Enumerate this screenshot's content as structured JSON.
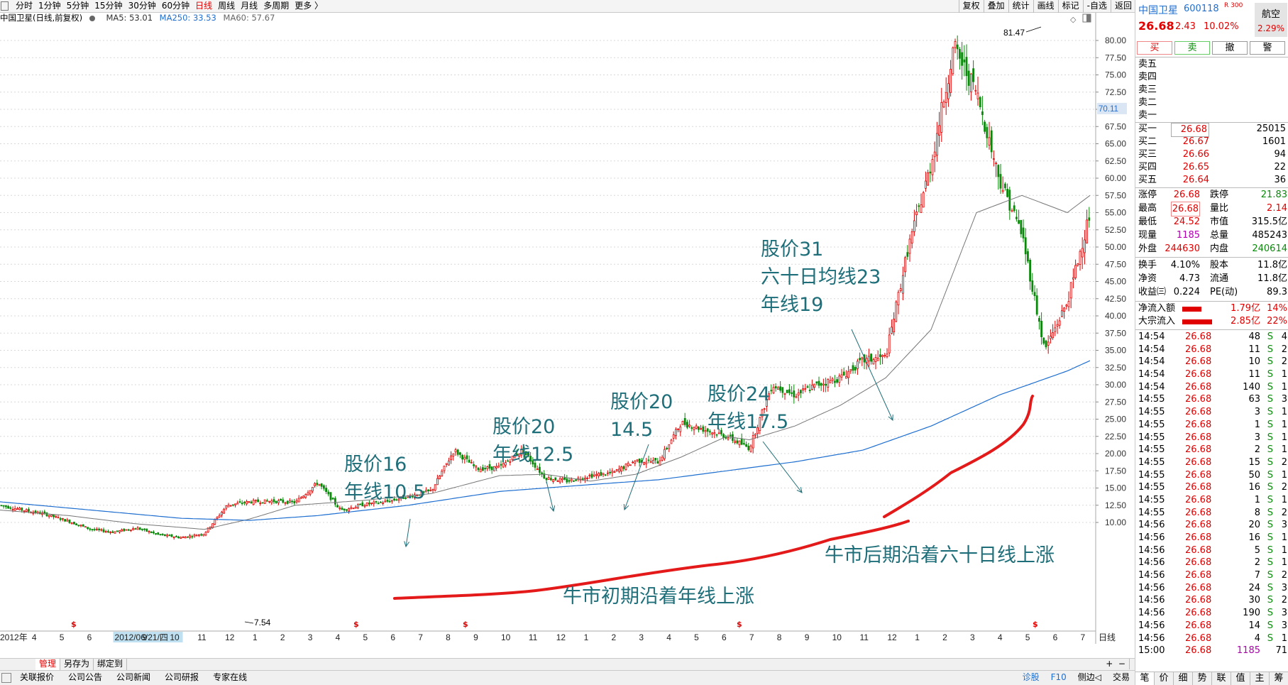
{
  "toolbar": {
    "periods": [
      "分时",
      "1分钟",
      "5分钟",
      "15分钟",
      "30分钟",
      "60分钟",
      "日线",
      "周线",
      "月线",
      "多周期",
      "更多 〉"
    ],
    "active_period": "日线",
    "right_tools": [
      "复权",
      "叠加",
      "统计",
      "画线",
      "标记",
      "-自选",
      "返回"
    ]
  },
  "legend": {
    "title": "中国卫星(日线,前复权)",
    "ma5": "MA5: 53.01",
    "ma250": "MA250: 33.53",
    "ma60": "MA60: 57.67"
  },
  "chart_data": {
    "type": "candlestick",
    "stock": "中国卫星",
    "x_labels": [
      "2012年",
      "4",
      "5",
      "6",
      "2012/06/21/四",
      "9",
      "10",
      "11",
      "12",
      "1",
      "2",
      "3",
      "4",
      "5",
      "6",
      "7",
      "8",
      "9",
      "10",
      "11",
      "12",
      "1",
      "2",
      "3",
      "4",
      "5",
      "6",
      "7",
      "8",
      "9",
      "10",
      "11",
      "12",
      "1",
      "2",
      "3",
      "4",
      "5",
      "6",
      "7"
    ],
    "y_ticks": [
      "80.00",
      "77.50",
      "75.00",
      "72.50",
      "70.00",
      "67.50",
      "65.00",
      "62.50",
      "60.00",
      "57.50",
      "55.00",
      "52.50",
      "50.00",
      "47.50",
      "45.00",
      "42.50",
      "40.00",
      "37.50",
      "35.00",
      "32.50",
      "30.00",
      "27.50",
      "25.00",
      "22.50",
      "20.00",
      "17.50",
      "15.00",
      "12.50",
      "10.00"
    ],
    "ylim": [
      7.5,
      82
    ],
    "high_label": "81.47",
    "low_label": "7.54",
    "current_label": "70.11",
    "period_label": "日线",
    "price_path": [
      [
        0,
        12.5
      ],
      [
        1,
        11.8
      ],
      [
        2,
        11.2
      ],
      [
        3,
        10.2
      ],
      [
        4,
        9.0
      ],
      [
        5,
        8.6
      ],
      [
        6,
        9.2
      ],
      [
        7,
        8.2
      ],
      [
        8,
        7.8
      ],
      [
        9,
        8.4
      ],
      [
        10,
        12.5
      ],
      [
        11,
        13.0
      ],
      [
        12,
        13.1
      ],
      [
        13,
        12.9
      ],
      [
        14,
        15.8
      ],
      [
        15,
        11.8
      ],
      [
        16,
        12.6
      ],
      [
        17,
        13.0
      ],
      [
        18,
        13.8
      ],
      [
        19,
        14.6
      ],
      [
        20,
        20.5
      ],
      [
        21,
        17.8
      ],
      [
        22,
        18.0
      ],
      [
        23,
        20.5
      ],
      [
        24,
        16.5
      ],
      [
        25,
        16.0
      ],
      [
        26,
        16.8
      ],
      [
        27,
        17.2
      ],
      [
        28,
        19.0
      ],
      [
        29,
        18.8
      ],
      [
        30,
        24.5
      ],
      [
        31,
        23.5
      ],
      [
        32,
        22.5
      ],
      [
        33,
        20.8
      ],
      [
        34,
        30.0
      ],
      [
        35,
        28.5
      ],
      [
        36,
        30.0
      ],
      [
        37,
        31.0
      ],
      [
        38,
        33.5
      ],
      [
        39,
        34.0
      ],
      [
        40,
        50.0
      ],
      [
        41,
        62.0
      ],
      [
        42,
        79.0
      ],
      [
        43,
        72.5
      ],
      [
        44,
        60.0
      ],
      [
        45,
        52.0
      ],
      [
        46,
        35.0
      ],
      [
        47,
        42.0
      ],
      [
        48,
        55.0
      ]
    ],
    "ma60_path": [
      [
        0,
        11.8
      ],
      [
        3,
        11.0
      ],
      [
        6,
        9.8
      ],
      [
        9,
        9.0
      ],
      [
        11,
        10.5
      ],
      [
        13,
        12.5
      ],
      [
        16,
        13.2
      ],
      [
        19,
        14.2
      ],
      [
        22,
        16.8
      ],
      [
        24,
        17.0
      ],
      [
        26,
        16.0
      ],
      [
        28,
        17.0
      ],
      [
        30,
        19.5
      ],
      [
        32,
        22.5
      ],
      [
        33,
        22.0
      ],
      [
        35,
        24.0
      ],
      [
        37,
        27.0
      ],
      [
        39,
        31.0
      ],
      [
        41,
        38.0
      ],
      [
        43,
        55.0
      ],
      [
        45,
        57.5
      ],
      [
        47,
        55.0
      ],
      [
        48,
        57.5
      ]
    ],
    "ma250_path": [
      [
        0,
        13.0
      ],
      [
        4,
        11.8
      ],
      [
        8,
        10.6
      ],
      [
        11,
        10.3
      ],
      [
        14,
        11.0
      ],
      [
        18,
        12.5
      ],
      [
        22,
        14.5
      ],
      [
        26,
        15.5
      ],
      [
        29,
        16.2
      ],
      [
        32,
        17.5
      ],
      [
        35,
        18.8
      ],
      [
        38,
        20.5
      ],
      [
        41,
        24.0
      ],
      [
        44,
        28.5
      ],
      [
        47,
        32.0
      ],
      [
        48,
        33.5
      ]
    ]
  },
  "annotations": {
    "a1": {
      "line1": "股价16",
      "line2": "年线10.5"
    },
    "a2": {
      "line1": "股价20",
      "line2": "年线12.5"
    },
    "a3": {
      "line1": "股价20",
      "line2": "14.5"
    },
    "a4": {
      "line1": "股价24",
      "line2": "年线17.5"
    },
    "a5": {
      "line1": "股价31",
      "line2": "六十日均线23",
      "line3": "年线19"
    },
    "phase1": "牛市初期沿着年线上涨",
    "phase2": "牛市后期沿着六十日线上涨"
  },
  "tabbar": [
    "管理",
    "另存为",
    "绑定到"
  ],
  "statusbar": {
    "left": [
      "关联报价",
      "公司公告",
      "公司新闻",
      "公司研报",
      "专家在线"
    ],
    "right": [
      "诊股",
      "F10",
      "侧边◁",
      "交易"
    ]
  },
  "panel": {
    "name": "中国卫星",
    "code": "600118",
    "flag": "R 300",
    "price": "26.68",
    "change": "2.43",
    "pct": "10.02%",
    "sector_name": "航空",
    "sector_pct": "2.29%",
    "buttons": [
      "买",
      "卖",
      "撤",
      "警"
    ],
    "asks": [
      {
        "label": "卖五",
        "price": "",
        "vol": ""
      },
      {
        "label": "卖四",
        "price": "",
        "vol": ""
      },
      {
        "label": "卖三",
        "price": "",
        "vol": ""
      },
      {
        "label": "卖二",
        "price": "",
        "vol": ""
      },
      {
        "label": "卖一",
        "price": "",
        "vol": ""
      }
    ],
    "bids": [
      {
        "label": "买一",
        "price": "26.68",
        "vol": "25015"
      },
      {
        "label": "买二",
        "price": "26.67",
        "vol": "1601"
      },
      {
        "label": "买三",
        "price": "26.66",
        "vol": "94"
      },
      {
        "label": "买四",
        "price": "26.65",
        "vol": "22"
      },
      {
        "label": "买五",
        "price": "26.64",
        "vol": "36"
      }
    ],
    "stats": [
      {
        "l1": "涨停",
        "v1": "26.68",
        "l2": "跌停",
        "v2": "21.83"
      },
      {
        "l1": "最高",
        "v1": "26.68",
        "l2": "量比",
        "v2": "2.14"
      },
      {
        "l1": "最低",
        "v1": "24.52",
        "l2": "市值",
        "v2": "315.5亿"
      },
      {
        "l1": "现量",
        "v1": "1185",
        "l2": "总量",
        "v2": "485243"
      },
      {
        "l1": "外盘",
        "v1": "244630",
        "l2": "内盘",
        "v2": "240614"
      }
    ],
    "stats2": [
      {
        "l1": "换手",
        "v1": "4.10%",
        "l2": "股本",
        "v2": "11.8亿"
      },
      {
        "l1": "净资",
        "v1": "4.73",
        "l2": "流通",
        "v2": "11.8亿"
      },
      {
        "l1": "收益㈢",
        "v1": "0.224",
        "l2": "PE(动)",
        "v2": "89.3"
      }
    ],
    "flows": [
      {
        "label": "净流入额",
        "value": "1.79亿",
        "pct": "14%",
        "bar": 0.45
      },
      {
        "label": "大宗流入",
        "value": "2.85亿",
        "pct": "22%",
        "bar": 0.7
      }
    ],
    "ticks": [
      {
        "t": "14:54",
        "p": "26.68",
        "v": "48",
        "s": "S",
        "c": "4"
      },
      {
        "t": "14:54",
        "p": "26.68",
        "v": "11",
        "s": "S",
        "c": "2"
      },
      {
        "t": "14:54",
        "p": "26.68",
        "v": "10",
        "s": "S",
        "c": "2"
      },
      {
        "t": "14:54",
        "p": "26.68",
        "v": "11",
        "s": "S",
        "c": "1"
      },
      {
        "t": "14:54",
        "p": "26.68",
        "v": "140",
        "s": "S",
        "c": "1"
      },
      {
        "t": "14:55",
        "p": "26.68",
        "v": "63",
        "s": "S",
        "c": "3"
      },
      {
        "t": "14:55",
        "p": "26.68",
        "v": "3",
        "s": "S",
        "c": "1"
      },
      {
        "t": "14:55",
        "p": "26.68",
        "v": "1",
        "s": "S",
        "c": "1"
      },
      {
        "t": "14:55",
        "p": "26.68",
        "v": "3",
        "s": "S",
        "c": "1"
      },
      {
        "t": "14:55",
        "p": "26.68",
        "v": "2",
        "s": "S",
        "c": "1"
      },
      {
        "t": "14:55",
        "p": "26.68",
        "v": "15",
        "s": "S",
        "c": "2"
      },
      {
        "t": "14:55",
        "p": "26.68",
        "v": "50",
        "s": "S",
        "c": "1"
      },
      {
        "t": "14:55",
        "p": "26.68",
        "v": "16",
        "s": "S",
        "c": "2"
      },
      {
        "t": "14:55",
        "p": "26.68",
        "v": "1",
        "s": "S",
        "c": "1"
      },
      {
        "t": "14:55",
        "p": "26.68",
        "v": "8",
        "s": "S",
        "c": "2"
      },
      {
        "t": "14:56",
        "p": "26.68",
        "v": "20",
        "s": "S",
        "c": "3"
      },
      {
        "t": "14:56",
        "p": "26.68",
        "v": "16",
        "s": "S",
        "c": "1"
      },
      {
        "t": "14:56",
        "p": "26.68",
        "v": "5",
        "s": "S",
        "c": "1"
      },
      {
        "t": "14:56",
        "p": "26.68",
        "v": "2",
        "s": "S",
        "c": "1"
      },
      {
        "t": "14:56",
        "p": "26.68",
        "v": "7",
        "s": "S",
        "c": "2"
      },
      {
        "t": "14:56",
        "p": "26.68",
        "v": "24",
        "s": "S",
        "c": "3"
      },
      {
        "t": "14:56",
        "p": "26.68",
        "v": "30",
        "s": "S",
        "c": "2"
      },
      {
        "t": "14:56",
        "p": "26.68",
        "v": "190",
        "s": "S",
        "c": "3"
      },
      {
        "t": "14:56",
        "p": "26.68",
        "v": "14",
        "s": "S",
        "c": "3"
      },
      {
        "t": "14:56",
        "p": "26.68",
        "v": "4",
        "s": "S",
        "c": "1"
      },
      {
        "t": "15:00",
        "p": "26.68",
        "v": "1185",
        "s": "",
        "c": "71"
      }
    ],
    "tabs": [
      "笔",
      "价",
      "细",
      "势",
      "联",
      "值",
      "主",
      "筹"
    ]
  },
  "colors": {
    "up": "#e00000",
    "down": "#0a8a0a",
    "ma60": "#777777",
    "ma250": "#1f6fd0",
    "annotation": "#1f6f7a"
  }
}
